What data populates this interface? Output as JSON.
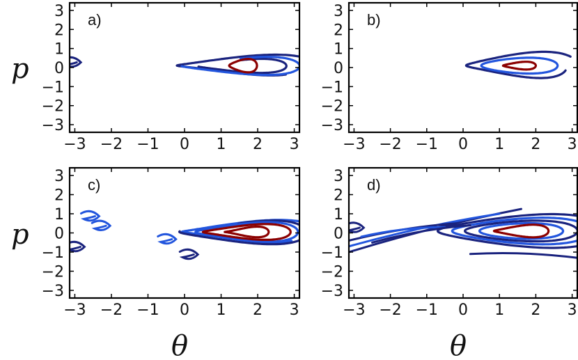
{
  "chart_data": {
    "type": "contour",
    "xlabel": "θ",
    "ylabel": "p",
    "xlim": [
      -3.14159,
      3.14159
    ],
    "ylim": [
      -3.4,
      3.4
    ],
    "x_ticks": [
      -3,
      -2,
      -1,
      0,
      1,
      2,
      3
    ],
    "y_ticks": [
      -3,
      -2,
      -1,
      0,
      1,
      2,
      3
    ],
    "x_tick_labels": [
      "−3",
      "−2",
      "−1",
      "0",
      "1",
      "2",
      "3"
    ],
    "y_tick_labels": [
      "−3",
      "−2",
      "−1",
      "0",
      "1",
      "2",
      "3"
    ],
    "colors": {
      "outer": "#1a237e",
      "mid": "#2255dd",
      "inner": "#8b0000"
    },
    "panels": [
      {
        "label": "a)",
        "center": [
          1.6,
          0.1
        ],
        "curves": [
          {
            "level": "outer",
            "a": 2.0,
            "b": 0.5,
            "ecc": 0.35,
            "start": 0.3,
            "sweep": 5.2,
            "arm": 0.5
          },
          {
            "level": "outer",
            "a": 1.3,
            "b": 0.35,
            "ecc": 0.3,
            "start": 3.5,
            "sweep": 4.4,
            "arm": 0.4
          },
          {
            "level": "mid",
            "a": 1.7,
            "b": 0.45,
            "ecc": 0.3,
            "start": 3.3,
            "sweep": 4.6,
            "arm": 0.4
          },
          {
            "level": "inner",
            "a": 0.38,
            "b": 0.32,
            "ecc": 0.25,
            "start": 0,
            "sweep": 6.283,
            "arm": 0
          }
        ],
        "fragments": [
          {
            "level": "outer",
            "theta": -3.1,
            "p": 0.2
          }
        ]
      },
      {
        "label": "b)",
        "center": [
          1.55,
          0.1
        ],
        "curves": [
          {
            "level": "outer",
            "a": 1.6,
            "b": 0.65,
            "ecc": 0.3,
            "start": 0.5,
            "sweep": 5.5,
            "arm": 0.5
          },
          {
            "level": "mid",
            "a": 1.05,
            "b": 0.4,
            "ecc": 0.15,
            "start": 0,
            "sweep": 6.283,
            "arm": 0
          },
          {
            "level": "inner",
            "a": 0.45,
            "b": 0.18,
            "ecc": 0.3,
            "start": 0,
            "sweep": 6.283,
            "arm": 0
          }
        ],
        "fragments": []
      },
      {
        "label": "c)",
        "center": [
          1.7,
          0.05
        ],
        "curves": [
          {
            "level": "mid",
            "a": 2.0,
            "b": 0.55,
            "ecc": 0.35,
            "start": 0.2,
            "sweep": 5.4,
            "arm": 0.6
          },
          {
            "level": "outer",
            "a": 1.85,
            "b": 0.6,
            "ecc": 0.3,
            "start": 3.0,
            "sweep": 5.0,
            "arm": 0.5
          },
          {
            "level": "mid",
            "a": 1.4,
            "b": 0.45,
            "ecc": 0.3,
            "start": 0,
            "sweep": 6.283,
            "arm": 0
          },
          {
            "level": "inner",
            "a": 1.2,
            "b": 0.35,
            "ecc": 0.35,
            "start": 0,
            "sweep": 6.283,
            "arm": 0
          },
          {
            "level": "inner",
            "a": 0.6,
            "b": 0.22,
            "ecc": 0.45,
            "start": 0,
            "sweep": 6.283,
            "arm": 0
          }
        ],
        "fragments": [
          {
            "level": "mid",
            "theta": -2.6,
            "p": 0.8
          },
          {
            "level": "mid",
            "theta": -2.3,
            "p": 0.3
          },
          {
            "level": "mid",
            "theta": -0.5,
            "p": -0.4
          },
          {
            "level": "outer",
            "theta": -3.0,
            "p": -0.8
          },
          {
            "level": "outer",
            "theta": 0.1,
            "p": -1.2
          }
        ]
      },
      {
        "label": "d)",
        "center": [
          1.6,
          0.1
        ],
        "curves": [
          {
            "level": "outer",
            "a": 2.3,
            "b": 0.8,
            "ecc": 0.25,
            "start": 0,
            "sweep": 6.283,
            "arm": 0
          },
          {
            "level": "mid",
            "a": 1.9,
            "b": 0.65,
            "ecc": 0.2,
            "start": 0,
            "sweep": 6.283,
            "arm": 0
          },
          {
            "level": "outer",
            "a": 1.55,
            "b": 0.52,
            "ecc": 0.15,
            "start": 0,
            "sweep": 6.283,
            "arm": 0
          },
          {
            "level": "mid",
            "a": 1.15,
            "b": 0.4,
            "ecc": 0.1,
            "start": 0,
            "sweep": 6.283,
            "arm": 0
          },
          {
            "level": "inner",
            "a": 0.75,
            "b": 0.28,
            "ecc": 0.35,
            "start": 0,
            "sweep": 6.283,
            "arm": 0
          }
        ],
        "streaks": [
          {
            "level": "outer",
            "x0": -3.14,
            "p0": -1.0,
            "x1": 1.6,
            "p1": 1.25
          },
          {
            "level": "mid",
            "x0": -3.14,
            "p0": -0.7,
            "x1": 1.0,
            "p1": 1.0
          },
          {
            "level": "outer",
            "x0": -3.14,
            "p0": -0.4,
            "x1": -0.2,
            "p1": 0.5
          },
          {
            "level": "mid",
            "x0": -2.8,
            "p0": -0.2,
            "x1": -0.5,
            "p1": 0.3
          },
          {
            "level": "outer",
            "x0": -2.5,
            "p0": -0.5,
            "x1": 0.2,
            "p1": 0.4
          },
          {
            "level": "outer",
            "x0": 0.2,
            "p0": -1.1,
            "x1": 3.14,
            "p1": -1.3
          }
        ],
        "fragments": [
          {
            "level": "outer",
            "theta": -3.0,
            "p": 0.2
          }
        ]
      }
    ]
  }
}
